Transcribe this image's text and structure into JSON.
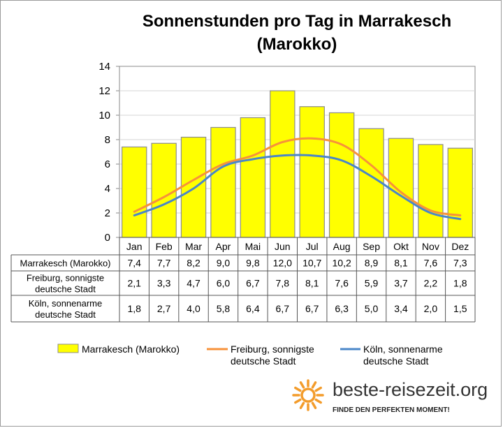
{
  "chart_data": {
    "type": "bar",
    "title": [
      "Sonnenstunden pro Tag in Marrakesch",
      "(Marokko)"
    ],
    "categories": [
      "Jan",
      "Feb",
      "Mar",
      "Apr",
      "Mai",
      "Jun",
      "Jul",
      "Aug",
      "Sep",
      "Okt",
      "Nov",
      "Dez"
    ],
    "ylim": [
      0,
      14
    ],
    "yticks": [
      "0",
      "2",
      "4",
      "6",
      "8",
      "10",
      "12",
      "14"
    ],
    "grid": true,
    "legend_position": "bottom",
    "series": [
      {
        "name": "Marrakesch (Marokko)",
        "table_label": [
          "Marrakesch (Marokko)"
        ],
        "legend_label": [
          "Marrakesch (Marokko)"
        ],
        "kind": "bar",
        "color": "#ffff00",
        "values": [
          7.4,
          7.7,
          8.2,
          9.0,
          9.8,
          12.0,
          10.7,
          10.2,
          8.9,
          8.1,
          7.6,
          7.3
        ],
        "labels": [
          "7,4",
          "7,7",
          "8,2",
          "9,0",
          "9,8",
          "12,0",
          "10,7",
          "10,2",
          "8,9",
          "8,1",
          "7,6",
          "7,3"
        ]
      },
      {
        "name": "Freiburg, sonnigste deutsche Stadt",
        "table_label": [
          "Freiburg, sonnigste",
          "deutsche Stadt"
        ],
        "legend_label": [
          "Freiburg, sonnigste",
          "deutsche Stadt"
        ],
        "kind": "line",
        "color": "#f7923a",
        "values": [
          2.1,
          3.3,
          4.7,
          6.0,
          6.7,
          7.8,
          8.1,
          7.6,
          5.9,
          3.7,
          2.2,
          1.8
        ],
        "labels": [
          "2,1",
          "3,3",
          "4,7",
          "6,0",
          "6,7",
          "7,8",
          "8,1",
          "7,6",
          "5,9",
          "3,7",
          "2,2",
          "1,8"
        ]
      },
      {
        "name": "Köln, sonnenarme deutsche Stadt",
        "table_label": [
          "Köln, sonnenarme",
          "deutsche Stadt"
        ],
        "legend_label": [
          "Köln, sonnenarme",
          "deutsche Stadt"
        ],
        "kind": "line",
        "color": "#4a86c8",
        "values": [
          1.8,
          2.7,
          4.0,
          5.8,
          6.4,
          6.7,
          6.7,
          6.3,
          5.0,
          3.4,
          2.0,
          1.5
        ],
        "labels": [
          "1,8",
          "2,7",
          "4,0",
          "5,8",
          "6,4",
          "6,7",
          "6,7",
          "6,3",
          "5,0",
          "3,4",
          "2,0",
          "1,5"
        ]
      }
    ]
  },
  "branding": {
    "site": "beste-reisezeit.org",
    "tagline": "FINDE DEN PERFEKTEN MOMENT!",
    "sun_color": "#f39c2b"
  }
}
